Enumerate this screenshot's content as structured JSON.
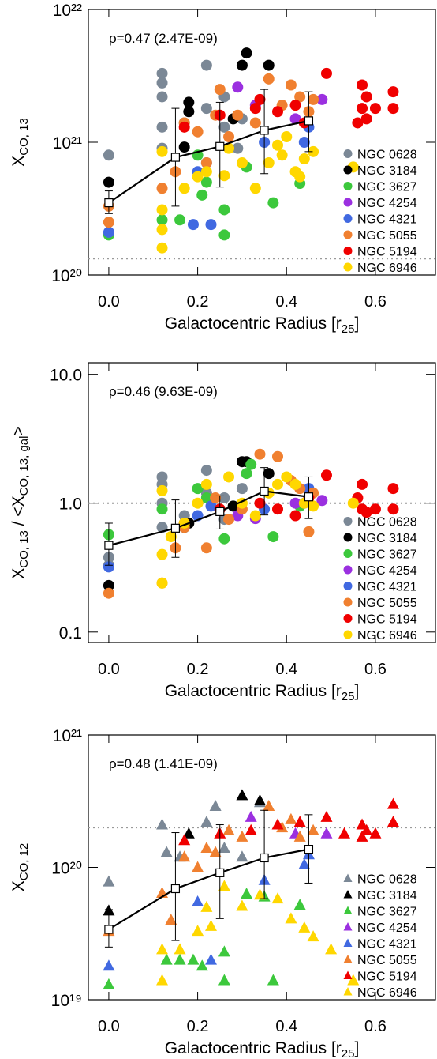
{
  "chart_data": [
    {
      "type": "scatter",
      "marker": "circle",
      "log_y": true,
      "annotation": "ρ=0.47 (2.47E-09)",
      "ylabel": [
        {
          "text": "X"
        },
        {
          "text": "CO, 13",
          "sub": true
        }
      ],
      "xlabel": [
        {
          "text": "Galactocentric Radius [r"
        },
        {
          "text": "25",
          "sub": true
        },
        {
          "text": "]"
        }
      ],
      "xlim": [
        -0.046,
        0.735
      ],
      "xticks": [
        {
          "value": 0,
          "label": "0.0"
        },
        0.2,
        0.4,
        0.6
      ],
      "ylim": [
        1e+20,
        1e+22
      ],
      "yticks": [
        {
          "value": 1e+20,
          "label": "10²⁰"
        },
        {
          "value": 1e+21,
          "label": "10²¹"
        },
        {
          "value": 1e+22,
          "label": "10²²"
        }
      ],
      "hline": 1.33e+20,
      "binned": {
        "x": [
          0,
          0.15,
          0.25,
          0.35,
          0.45
        ],
        "values": [
          3.5e+20,
          7.7e+20,
          9.3e+20,
          1.23e+21,
          1.45e+21
        ],
        "lower": [
          2.9e+20,
          3.3e+20,
          4.6e+20,
          5.8e+20,
          8.5e+20
        ],
        "upper": [
          4.3e+20,
          1.8e+21,
          2e+21,
          2.5e+21,
          2.4e+21
        ]
      },
      "series": [
        {
          "name": "NGC 0628",
          "color": "#7b8896",
          "x": [
            0,
            0.12,
            0.12,
            0.12,
            0.12,
            0.12,
            0.17,
            0.22,
            0.22,
            0.26,
            0.26,
            0.29,
            0.3
          ],
          "values": [
            8e+20,
            3.3e+21,
            2.8e+21,
            2.2e+21,
            1.3e+21,
            9e+20,
            1.4e+21,
            1.8e+21,
            3.8e+21,
            2.2e+21,
            1.3e+21,
            9e+20,
            1.5e+21
          ]
        },
        {
          "name": "NGC 3184",
          "color": "#000000",
          "x": [
            0,
            0.17,
            0.18,
            0.18,
            0.3,
            0.31,
            0.36,
            0.28
          ],
          "values": [
            5e+20,
            9.2e+20,
            1.7e+21,
            2e+21,
            3.8e+21,
            4.7e+21,
            3.8e+21,
            1.5e+21
          ]
        },
        {
          "name": "NGC 3627",
          "color": "#3cc83c",
          "x": [
            0.12,
            0.16,
            0.21,
            0.22,
            0.26,
            0.26,
            0.31,
            0.37,
            0.43,
            0,
            0.2
          ],
          "values": [
            2.6e+20,
            2.6e+20,
            4e+20,
            5e+20,
            3.1e+20,
            2e+20,
            6.5e+20,
            3.5e+20,
            4.9e+20,
            2e+20,
            8e+20
          ]
        },
        {
          "name": "NGC 4254",
          "color": "#9b30e0",
          "x": [
            0.29,
            0.42,
            0.48,
            0.33
          ],
          "values": [
            2.6e+21,
            1.5e+21,
            2.1e+21,
            1.9e+21
          ]
        },
        {
          "name": "NGC 4321",
          "color": "#4169e1",
          "x": [
            0,
            0.2,
            0.23,
            0.35,
            0.44,
            0.45,
            0.22,
            0.19
          ],
          "values": [
            2.1e+20,
            6e+20,
            2.4e+20,
            1e+21,
            1e+21,
            1.3e+21,
            7e+20,
            2.4e+20
          ]
        },
        {
          "name": "NGC 5055",
          "color": "#f08030",
          "x": [
            0,
            0,
            0.12,
            0.15,
            0.17,
            0.2,
            0.22,
            0.24,
            0.27,
            0.29,
            0.33,
            0.36,
            0.39,
            0.41,
            0.43,
            0.45,
            0.46,
            0.25
          ],
          "values": [
            3.3e+20,
            2.5e+20,
            4.5e+20,
            6e+20,
            1.4e+21,
            1.2e+21,
            7e+20,
            1.6e+21,
            1.1e+21,
            1.6e+21,
            1.4e+21,
            3e+21,
            1.9e+21,
            2.7e+21,
            2.2e+21,
            1.7e+21,
            2.1e+21,
            2.5e+21
          ]
        },
        {
          "name": "NGC 5194",
          "color": "#f00000",
          "x": [
            0.17,
            0.25,
            0.33,
            0.34,
            0.38,
            0.42,
            0.44,
            0.49,
            0.57,
            0.57,
            0.58,
            0.58,
            0.6,
            0.64,
            0.64,
            0.56
          ],
          "values": [
            1.3e+21,
            1.6e+21,
            1.8e+21,
            2.1e+21,
            1.7e+21,
            1.9e+21,
            1.4e+21,
            3.3e+21,
            1.8e+21,
            2.7e+21,
            1.5e+21,
            2.2e+21,
            1.8e+21,
            1.8e+21,
            2.4e+21,
            1.4e+21
          ]
        },
        {
          "name": "NGC 6946",
          "color": "#ffd700",
          "x": [
            0.12,
            0.12,
            0.12,
            0.12,
            0.17,
            0.2,
            0.22,
            0.26,
            0.27,
            0.3,
            0.33,
            0.36,
            0.38,
            0.39,
            0.42,
            0.43,
            0.44,
            0.46,
            0.55,
            0.4
          ],
          "values": [
            1.6e+20,
            2.2e+20,
            3.1e+20,
            8.5e+20,
            4.5e+20,
            5.5e+20,
            6e+20,
            5.6e+20,
            9e+20,
            7e+20,
            4.5e+20,
            7e+20,
            9.5e+20,
            8e+20,
            6e+20,
            5.5e+20,
            7.5e+20,
            8.5e+20,
            6.5e+20,
            1.1e+21
          ]
        }
      ]
    },
    {
      "type": "scatter",
      "marker": "circle",
      "log_y": true,
      "annotation": "ρ=0.46 (9.63E-09)",
      "ylabel": [
        {
          "text": "X"
        },
        {
          "text": "CO, 13",
          "sub": true
        },
        {
          "text": " / <X"
        },
        {
          "text": "CO, 13, gal",
          "sub": true
        },
        {
          "text": ">"
        }
      ],
      "xlabel": [
        {
          "text": "Galactocentric Radius [r"
        },
        {
          "text": "25",
          "sub": true
        },
        {
          "text": "]"
        }
      ],
      "xlim": [
        -0.046,
        0.735
      ],
      "xticks": [
        {
          "value": 0,
          "label": "0.0"
        },
        0.2,
        0.4,
        0.6
      ],
      "ylim": [
        0.083,
        12.3
      ],
      "yticks": [
        0.1,
        {
          "value": 1,
          "label": "1.0"
        },
        {
          "value": 10,
          "label": "10.0"
        }
      ],
      "hline": 1,
      "binned": {
        "x": [
          0,
          0.15,
          0.25,
          0.35,
          0.45
        ],
        "values": [
          0.47,
          0.64,
          0.86,
          1.24,
          1.12
        ],
        "lower": [
          0.33,
          0.38,
          0.63,
          0.81,
          0.76
        ],
        "upper": [
          0.7,
          1.06,
          1.14,
          1.89,
          1.6
        ]
      },
      "series": [
        {
          "name": "NGC 0628",
          "color": "#7b8896",
          "x": [
            0,
            0,
            0.12,
            0.12,
            0.12,
            0.12,
            0.17,
            0.22,
            0.22,
            0.26,
            0.26,
            0.3
          ],
          "values": [
            0.38,
            0.33,
            1.6,
            1.4,
            1.0,
            0.65,
            0.8,
            1.8,
            1.2,
            1.1,
            0.75,
            1.3
          ]
        },
        {
          "name": "NGC 3184",
          "color": "#000000",
          "x": [
            0,
            0.17,
            0.18,
            0.3,
            0.31,
            0.36,
            0.28
          ],
          "values": [
            0.23,
            0.65,
            0.7,
            2.1,
            2.1,
            1.7,
            0.95
          ]
        },
        {
          "name": "NGC 3627",
          "color": "#3cc83c",
          "x": [
            0,
            0.12,
            0.2,
            0.22,
            0.26,
            0.31,
            0.32,
            0.37,
            0.43
          ],
          "values": [
            0.57,
            0.9,
            1.3,
            1.1,
            0.53,
            1.7,
            2.0,
            0.55,
            0.95
          ]
        },
        {
          "name": "NGC 4254",
          "color": "#9b30e0",
          "x": [
            0.29,
            0.33,
            0.42,
            0.48
          ],
          "values": [
            0.8,
            0.76,
            1.0,
            1.05
          ]
        },
        {
          "name": "NGC 4321",
          "color": "#4169e1",
          "x": [
            0,
            0.2,
            0.23,
            0.35,
            0.44,
            0.45
          ],
          "values": [
            0.32,
            0.8,
            0.95,
            0.9,
            1.0,
            1.3
          ]
        },
        {
          "name": "NGC 5055",
          "color": "#f08030",
          "x": [
            0,
            0.12,
            0.15,
            0.17,
            0.22,
            0.24,
            0.27,
            0.3,
            0.34,
            0.38,
            0.41,
            0.43,
            0.45,
            0.46
          ],
          "values": [
            0.2,
            0.24,
            0.45,
            0.65,
            0.45,
            1.1,
            0.75,
            0.9,
            2.4,
            2.3,
            1.5,
            1.3,
            0.6,
            1.2
          ]
        },
        {
          "name": "NGC 5194",
          "color": "#f00000",
          "x": [
            0.17,
            0.25,
            0.34,
            0.38,
            0.42,
            0.45,
            0.49,
            0.57,
            0.57,
            0.58,
            0.6,
            0.64,
            0.64,
            0.56
          ],
          "values": [
            0.7,
            0.9,
            1.0,
            0.9,
            0.8,
            1.1,
            1.65,
            1.4,
            0.9,
            0.85,
            0.9,
            0.9,
            1.3,
            1.1
          ]
        },
        {
          "name": "NGC 6946",
          "color": "#ffd700",
          "x": [
            0.12,
            0.12,
            0.12,
            0.14,
            0.17,
            0.2,
            0.22,
            0.27,
            0.3,
            0.33,
            0.36,
            0.38,
            0.4,
            0.42,
            0.44,
            0.46,
            0.55
          ],
          "values": [
            0.24,
            0.4,
            1.25,
            0.55,
            0.7,
            1.0,
            1.4,
            1.6,
            1.0,
            0.8,
            1.2,
            1.4,
            1.6,
            1.4,
            1.0,
            0.95,
            1.0
          ]
        }
      ]
    },
    {
      "type": "scatter",
      "marker": "triangle",
      "log_y": true,
      "annotation": "ρ=0.48 (1.41E-09)",
      "ylabel": [
        {
          "text": "X"
        },
        {
          "text": "CO, 12",
          "sub": true
        }
      ],
      "xlabel": [
        {
          "text": "Galactocentric Radius [r"
        },
        {
          "text": "25",
          "sub": true
        },
        {
          "text": "]"
        }
      ],
      "xlim": [
        -0.046,
        0.735
      ],
      "xticks": [
        {
          "value": 0,
          "label": "0.0"
        },
        0.2,
        0.4,
        0.6
      ],
      "ylim": [
        1e+19,
        1e+21
      ],
      "yticks": [
        {
          "value": 1e+19,
          "label": "10¹⁹"
        },
        {
          "value": 1e+20,
          "label": "10²⁰"
        },
        {
          "value": 1e+21,
          "label": "10²¹"
        }
      ],
      "hline": 2e+20,
      "binned": {
        "x": [
          0,
          0.15,
          0.25,
          0.35,
          0.45
        ],
        "values": [
          3.4e+19,
          6.9e+19,
          9.1e+19,
          1.18e+20,
          1.37e+20
        ],
        "lower": [
          2.5e+19,
          2.8e+19,
          4.1e+19,
          5.8e+19,
          7.6e+19
        ],
        "upper": [
          4.8e+19,
          1.83e+20,
          2.1e+20,
          2.7e+20,
          2.5e+20
        ]
      },
      "series": [
        {
          "name": "NGC 0628",
          "color": "#7b8896",
          "x": [
            0,
            0.12,
            0.13,
            0.16,
            0.22,
            0.24,
            0.26,
            0.3,
            0.34
          ],
          "values": [
            7.8e+19,
            2.1e+20,
            1.3e+20,
            1.2e+20,
            2.2e+20,
            2.9e+20,
            1.4e+20,
            1.2e+20,
            3.1e+20
          ]
        },
        {
          "name": "NGC 3184",
          "color": "#000000",
          "x": [
            0,
            0.18,
            0.3,
            0.34
          ],
          "values": [
            4.7e+19,
            1.8e+20,
            3.5e+20,
            3.2e+20
          ]
        },
        {
          "name": "NGC 3627",
          "color": "#3cc83c",
          "x": [
            0,
            0.13,
            0.16,
            0.19,
            0.21,
            0.26,
            0.26,
            0.31,
            0.35,
            0.37,
            0.43
          ],
          "values": [
            1.3e+19,
            2e+19,
            2e+19,
            2e+19,
            1.8e+19,
            2.3e+19,
            1.4e+19,
            6.3e+19,
            6e+19,
            1.4e+19,
            5.2e+19
          ]
        },
        {
          "name": "NGC 4254",
          "color": "#9b30e0",
          "x": [
            0.32,
            0.42,
            0.49
          ],
          "values": [
            2.4e+20,
            1.8e+20,
            1.8e+20
          ]
        },
        {
          "name": "NGC 4321",
          "color": "#4169e1",
          "x": [
            0,
            0.2,
            0.23,
            0.35,
            0.44,
            0.45
          ],
          "values": [
            1.8e+19,
            5.5e+19,
            2e+19,
            8e+19,
            1.05e+20,
            1.25e+20
          ]
        },
        {
          "name": "NGC 5055",
          "color": "#f08030",
          "x": [
            0,
            0.12,
            0.14,
            0.17,
            0.2,
            0.22,
            0.24,
            0.27,
            0.3,
            0.36,
            0.39,
            0.41,
            0.43,
            0.46
          ],
          "values": [
            3.3e+19,
            6.4e+19,
            4e+19,
            1.2e+20,
            1e+20,
            1.4e+20,
            1.3e+20,
            1.9e+20,
            1.7e+20,
            2.9e+20,
            2e+20,
            2.3e+20,
            1.7e+20,
            1.9e+20
          ]
        },
        {
          "name": "NGC 5194",
          "color": "#f00000",
          "x": [
            0.17,
            0.25,
            0.32,
            0.38,
            0.43,
            0.49,
            0.57,
            0.57,
            0.58,
            0.6,
            0.64,
            0.64,
            0.53
          ],
          "values": [
            1.6e+20,
            1.8e+20,
            1.9e+20,
            2.1e+20,
            2.2e+20,
            2.4e+20,
            1.7e+20,
            2.1e+20,
            1.9e+20,
            1.8e+20,
            2.2e+20,
            3e+20,
            1.8e+20
          ]
        },
        {
          "name": "NGC 6946",
          "color": "#ffd700",
          "x": [
            0.12,
            0.12,
            0.16,
            0.2,
            0.22,
            0.23,
            0.26,
            0.3,
            0.34,
            0.38,
            0.41,
            0.44,
            0.46,
            0.5,
            0.55
          ],
          "values": [
            1.4e+19,
            2.4e+19,
            2.4e+19,
            3.3e+19,
            5e+19,
            3.6e+19,
            7.2e+19,
            5.1e+19,
            6.2e+19,
            5.8e+19,
            4.1e+19,
            3.5e+19,
            3e+19,
            2.4e+19,
            1.4e+19
          ]
        }
      ]
    }
  ]
}
